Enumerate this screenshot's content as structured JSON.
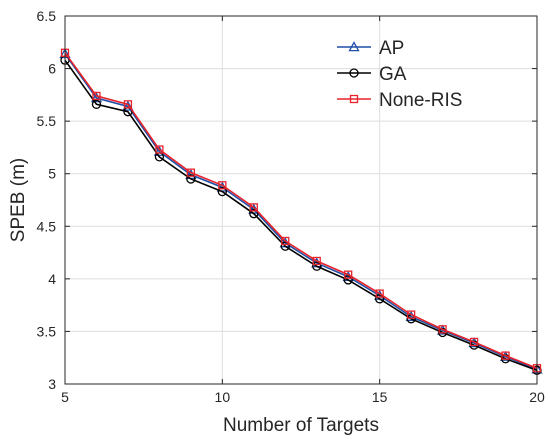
{
  "chart_data": {
    "type": "line",
    "title": "",
    "xlabel": "Number of Targets",
    "ylabel": "SPEB (m)",
    "xlim": [
      5,
      20
    ],
    "ylim": [
      3,
      6.5
    ],
    "xticks": [
      "5",
      "10",
      "15",
      "20"
    ],
    "yticks": [
      "3",
      "3.5",
      "4",
      "4.5",
      "5",
      "5.5",
      "6",
      "6.5"
    ],
    "grid": true,
    "legend_position": "top-right",
    "x": [
      5,
      6,
      7,
      8,
      9,
      10,
      11,
      12,
      13,
      14,
      15,
      16,
      17,
      18,
      19,
      20
    ],
    "series": [
      {
        "name": "AP",
        "color": "#1f4fa8",
        "marker": "triangle",
        "values": [
          6.14,
          5.72,
          5.64,
          5.21,
          4.99,
          4.87,
          4.66,
          4.34,
          4.15,
          4.02,
          3.84,
          3.64,
          3.51,
          3.39,
          3.26,
          3.14
        ]
      },
      {
        "name": "GA",
        "color": "#000000",
        "marker": "circle",
        "values": [
          6.08,
          5.66,
          5.59,
          5.16,
          4.95,
          4.83,
          4.62,
          4.31,
          4.12,
          3.99,
          3.81,
          3.62,
          3.49,
          3.37,
          3.24,
          3.13
        ]
      },
      {
        "name": "None-RIS",
        "color": "#e8232a",
        "marker": "square",
        "values": [
          6.15,
          5.74,
          5.66,
          5.23,
          5.01,
          4.89,
          4.68,
          4.36,
          4.17,
          4.04,
          3.86,
          3.66,
          3.52,
          3.4,
          3.27,
          3.15
        ]
      }
    ]
  }
}
